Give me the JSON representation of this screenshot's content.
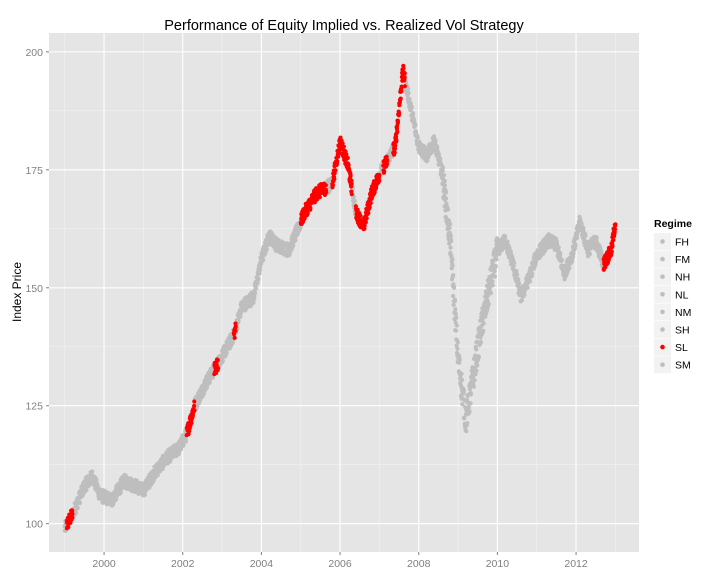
{
  "chart_data": {
    "type": "scatter",
    "title": "Performance of Equity Implied vs. Realized Vol Strategy",
    "xlabel": "",
    "ylabel": "Index Price",
    "xlim": [
      1998.6,
      2013.6
    ],
    "ylim": [
      94,
      204
    ],
    "x_ticks": [
      {
        "value": 2000,
        "label": "2000"
      },
      {
        "value": 2002,
        "label": "2002"
      },
      {
        "value": 2004,
        "label": "2004"
      },
      {
        "value": 2006,
        "label": "2006"
      },
      {
        "value": 2008,
        "label": "2008"
      },
      {
        "value": 2010,
        "label": "2010"
      },
      {
        "value": 2012,
        "label": "2012"
      }
    ],
    "y_ticks": [
      {
        "value": 100,
        "label": "100"
      },
      {
        "value": 125,
        "label": "125"
      },
      {
        "value": 150,
        "label": "150"
      },
      {
        "value": 175,
        "label": "175"
      },
      {
        "value": 200,
        "label": "200"
      }
    ],
    "grid": true,
    "legend": {
      "title": "Regime",
      "position": "right",
      "entries": [
        {
          "label": "FH",
          "color": "#bebebe"
        },
        {
          "label": "FM",
          "color": "#bebebe"
        },
        {
          "label": "NH",
          "color": "#bebebe"
        },
        {
          "label": "NL",
          "color": "#bebebe"
        },
        {
          "label": "NM",
          "color": "#bebebe"
        },
        {
          "label": "SH",
          "color": "#bebebe"
        },
        {
          "label": "SL",
          "color": "#ff0000"
        },
        {
          "label": "SM",
          "color": "#bebebe"
        }
      ]
    },
    "colors": {
      "gray": "#bebebe",
      "red": "#ff0000",
      "panel": "#e5e5e5",
      "grid": "#ffffff"
    },
    "path_anchors": [
      [
        1999.0,
        99
      ],
      [
        1999.2,
        102
      ],
      [
        1999.5,
        108
      ],
      [
        1999.7,
        110
      ],
      [
        1999.9,
        106
      ],
      [
        2000.2,
        105
      ],
      [
        2000.5,
        109
      ],
      [
        2000.8,
        108
      ],
      [
        2001.0,
        107
      ],
      [
        2001.3,
        111
      ],
      [
        2001.6,
        114
      ],
      [
        2001.9,
        116
      ],
      [
        2002.1,
        119
      ],
      [
        2002.3,
        125
      ],
      [
        2002.6,
        130
      ],
      [
        2002.9,
        134
      ],
      [
        2003.1,
        137
      ],
      [
        2003.3,
        140
      ],
      [
        2003.5,
        146
      ],
      [
        2003.8,
        148
      ],
      [
        2004.0,
        156
      ],
      [
        2004.2,
        161
      ],
      [
        2004.4,
        159
      ],
      [
        2004.7,
        158
      ],
      [
        2004.9,
        162
      ],
      [
        2005.1,
        166
      ],
      [
        2005.4,
        170
      ],
      [
        2005.8,
        172
      ],
      [
        2006.0,
        181
      ],
      [
        2006.2,
        176
      ],
      [
        2006.4,
        166
      ],
      [
        2006.6,
        163
      ],
      [
        2006.8,
        170
      ],
      [
        2007.0,
        174
      ],
      [
        2007.2,
        177
      ],
      [
        2007.4,
        180
      ],
      [
        2007.6,
        196
      ],
      [
        2007.8,
        188
      ],
      [
        2008.0,
        180
      ],
      [
        2008.2,
        178
      ],
      [
        2008.4,
        181
      ],
      [
        2008.6,
        174
      ],
      [
        2008.8,
        160
      ],
      [
        2009.0,
        135
      ],
      [
        2009.2,
        122
      ],
      [
        2009.4,
        132
      ],
      [
        2009.6,
        142
      ],
      [
        2009.8,
        150
      ],
      [
        2010.0,
        158
      ],
      [
        2010.2,
        160
      ],
      [
        2010.4,
        155
      ],
      [
        2010.6,
        148
      ],
      [
        2010.8,
        152
      ],
      [
        2011.0,
        157
      ],
      [
        2011.3,
        160
      ],
      [
        2011.5,
        159
      ],
      [
        2011.7,
        153
      ],
      [
        2011.9,
        157
      ],
      [
        2012.1,
        164
      ],
      [
        2012.3,
        158
      ],
      [
        2012.5,
        160
      ],
      [
        2012.7,
        155
      ],
      [
        2012.9,
        158
      ],
      [
        2013.0,
        164
      ]
    ],
    "highlight_segments_SL": [
      [
        1999.05,
        1999.2
      ],
      [
        2002.1,
        2002.3
      ],
      [
        2002.8,
        2002.9
      ],
      [
        2003.3,
        2003.35
      ],
      [
        2005.0,
        2005.5
      ],
      [
        2005.5,
        2005.65
      ],
      [
        2005.8,
        2006.3
      ],
      [
        2006.4,
        2006.55
      ],
      [
        2006.6,
        2007.0
      ],
      [
        2007.1,
        2007.2
      ],
      [
        2007.35,
        2007.65
      ],
      [
        2012.7,
        2013.02
      ]
    ]
  }
}
